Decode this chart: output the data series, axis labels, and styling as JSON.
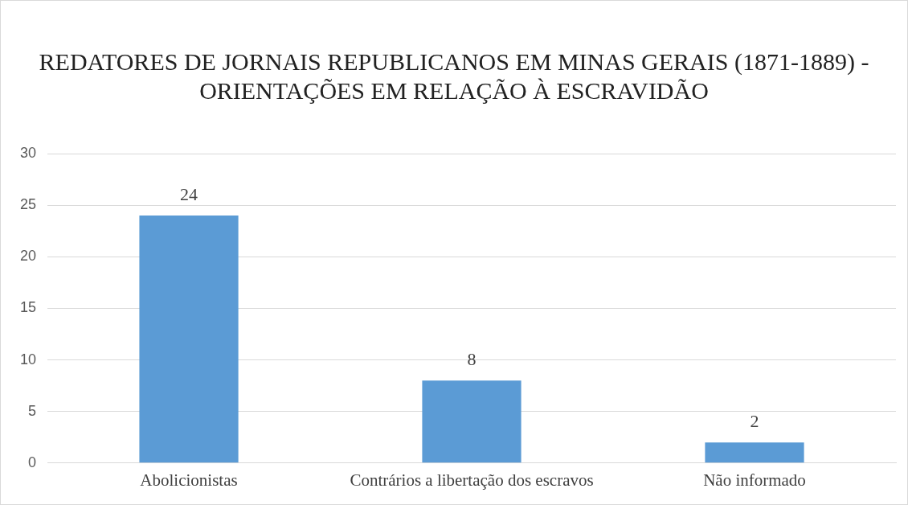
{
  "chart_data": {
    "type": "bar",
    "title": "REDATORES DE JORNAIS REPUBLICANOS EM MINAS GERAIS (1871-1889) - ORIENTAÇÕES EM RELAÇÃO À ESCRAVIDÃO",
    "categories": [
      "Abolicionistas",
      "Contrários a libertação dos escravos",
      "Não informado"
    ],
    "values": [
      24,
      8,
      2
    ],
    "color": "#5b9bd5",
    "ylim": [
      0,
      30
    ],
    "yticks": [
      0,
      5,
      10,
      15,
      20,
      25,
      30
    ],
    "grid": "y",
    "data_labels": true,
    "legend": false
  }
}
